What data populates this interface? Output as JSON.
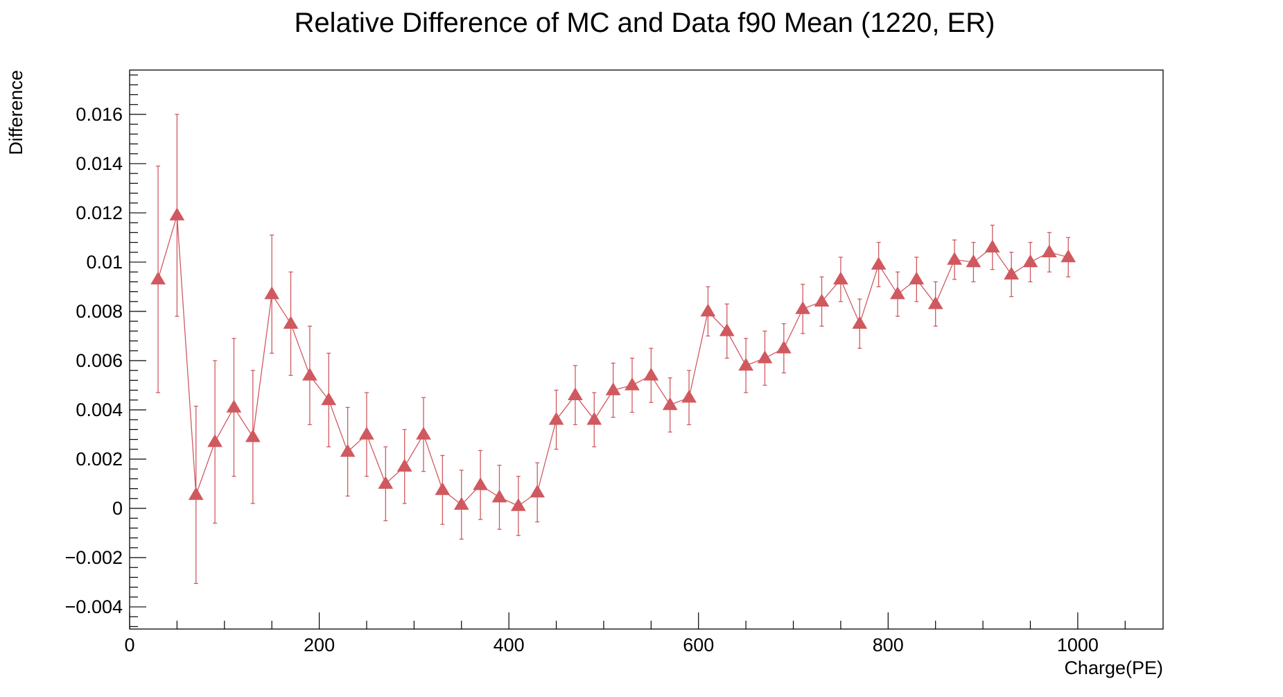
{
  "chart_data": {
    "type": "scatter",
    "title": "Relative Difference of MC and Data f90 Mean (1220, ER)",
    "xlabel": "Charge(PE)",
    "ylabel": "Difference",
    "xlim": [
      0,
      1090
    ],
    "ylim": [
      -0.0049,
      0.0178
    ],
    "xticks": [
      {
        "value": 0,
        "label": "0"
      },
      {
        "value": 200,
        "label": "200"
      },
      {
        "value": 400,
        "label": "400"
      },
      {
        "value": 600,
        "label": "600"
      },
      {
        "value": 800,
        "label": "800"
      },
      {
        "value": 1000,
        "label": "1000"
      }
    ],
    "yticks": [
      {
        "value": -0.004,
        "label": "−0.004"
      },
      {
        "value": -0.002,
        "label": "−0.002"
      },
      {
        "value": 0,
        "label": "0"
      },
      {
        "value": 0.002,
        "label": "0.002"
      },
      {
        "value": 0.004,
        "label": "0.004"
      },
      {
        "value": 0.006,
        "label": "0.006"
      },
      {
        "value": 0.008,
        "label": "0.008"
      },
      {
        "value": 0.01,
        "label": "0.01"
      },
      {
        "value": 0.012,
        "label": "0.012"
      },
      {
        "value": 0.014,
        "label": "0.014"
      },
      {
        "value": 0.016,
        "label": "0.016"
      }
    ],
    "grid": false,
    "marker": "triangle-up",
    "colors": {
      "series": "#d0595f",
      "axis": "#000000"
    },
    "series": [
      {
        "x": [
          30,
          50,
          70,
          90,
          110,
          130,
          150,
          170,
          190,
          210,
          230,
          250,
          270,
          290,
          310,
          330,
          350,
          370,
          390,
          410,
          430,
          450,
          470,
          490,
          510,
          530,
          550,
          570,
          590,
          610,
          630,
          650,
          670,
          690,
          710,
          730,
          750,
          770,
          790,
          810,
          830,
          850,
          870,
          890,
          910,
          930,
          950,
          970,
          990
        ],
        "y": [
          0.0093,
          0.0119,
          0.00055,
          0.0027,
          0.0041,
          0.0029,
          0.0087,
          0.0075,
          0.0054,
          0.0044,
          0.0023,
          0.003,
          0.001,
          0.0017,
          0.003,
          0.00075,
          0.00015,
          0.00095,
          0.00045,
          0.0001,
          0.00065,
          0.0036,
          0.0046,
          0.0036,
          0.0048,
          0.005,
          0.0054,
          0.0042,
          0.0045,
          0.008,
          0.0072,
          0.0058,
          0.0061,
          0.0065,
          0.0081,
          0.0084,
          0.0093,
          0.0075,
          0.0099,
          0.0087,
          0.0093,
          0.0083,
          0.0101,
          0.01,
          0.0106,
          0.0095,
          0.01,
          0.0104,
          0.0102
        ],
        "yerr": [
          0.0046,
          0.0041,
          0.0036,
          0.0033,
          0.0028,
          0.0027,
          0.0024,
          0.0021,
          0.002,
          0.0019,
          0.0018,
          0.0017,
          0.0015,
          0.0015,
          0.0015,
          0.0014,
          0.0014,
          0.0014,
          0.0013,
          0.0012,
          0.0012,
          0.0012,
          0.0012,
          0.0011,
          0.0011,
          0.0011,
          0.0011,
          0.0011,
          0.0011,
          0.001,
          0.0011,
          0.0011,
          0.0011,
          0.001,
          0.001,
          0.001,
          0.0009,
          0.001,
          0.0009,
          0.0009,
          0.0009,
          0.0009,
          0.0008,
          0.0008,
          0.0009,
          0.0009,
          0.0008,
          0.0008,
          0.0008
        ]
      }
    ]
  }
}
